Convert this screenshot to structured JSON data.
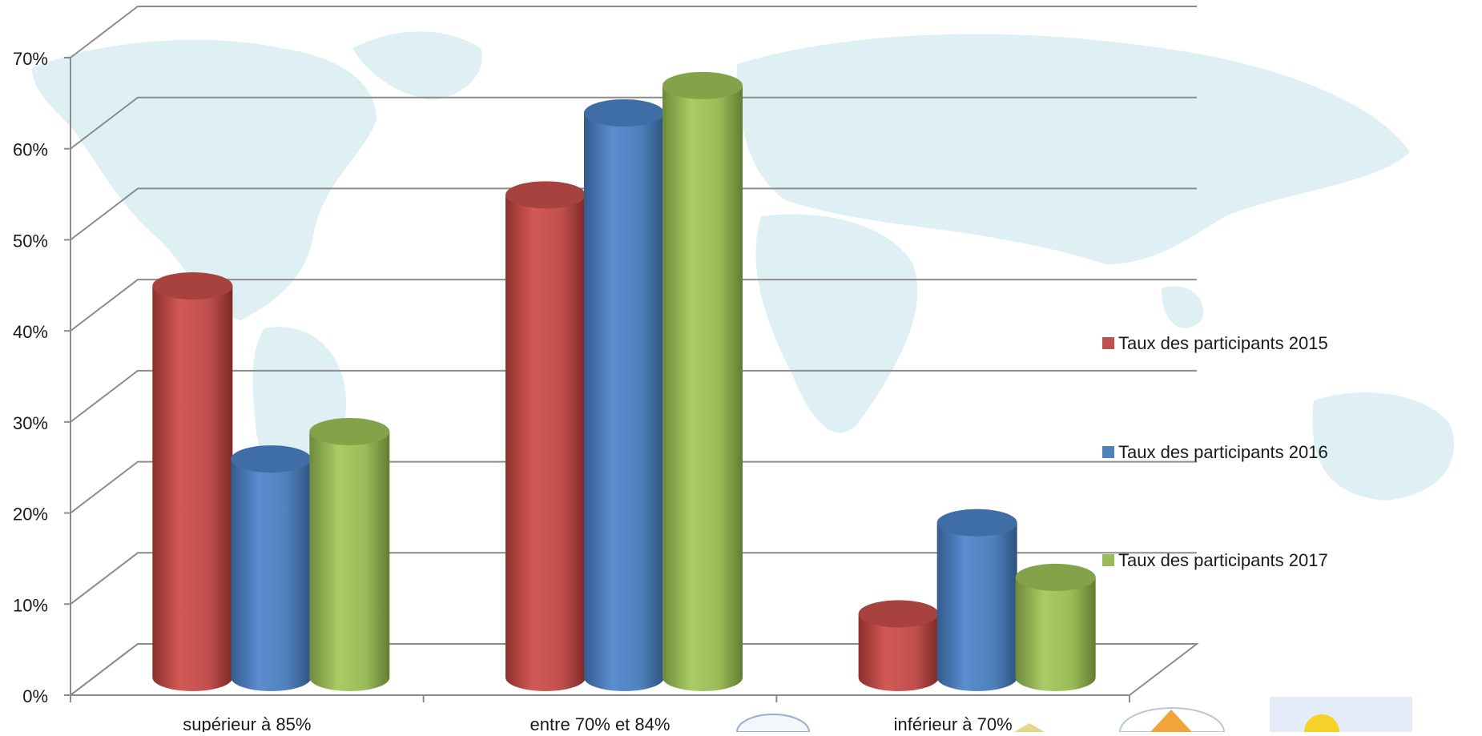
{
  "chart_data": {
    "type": "bar",
    "title": "",
    "xlabel": "",
    "ylabel": "",
    "categories": [
      "supérieur à 85%",
      "entre 70% et 84%",
      "inférieur à 70%"
    ],
    "series": [
      {
        "name": "Taux des participants 2015",
        "color": "#c0504d",
        "values": [
          43,
          53,
          7
        ]
      },
      {
        "name": "Taux des participants 2016",
        "color": "#4f81bd",
        "values": [
          24,
          62,
          17
        ]
      },
      {
        "name": "Taux des participants 2017",
        "color": "#9bbb59",
        "values": [
          27,
          65,
          11
        ]
      }
    ],
    "ylim": [
      0,
      70
    ],
    "yticks": [
      0,
      10,
      20,
      30,
      40,
      50,
      60,
      70
    ],
    "ytick_labels": [
      "0%",
      "10%",
      "20%",
      "30%",
      "40%",
      "50%",
      "60%",
      "70%"
    ],
    "grid": true,
    "legend_position": "right",
    "style": "3d-cylinder",
    "background": "world-map"
  }
}
